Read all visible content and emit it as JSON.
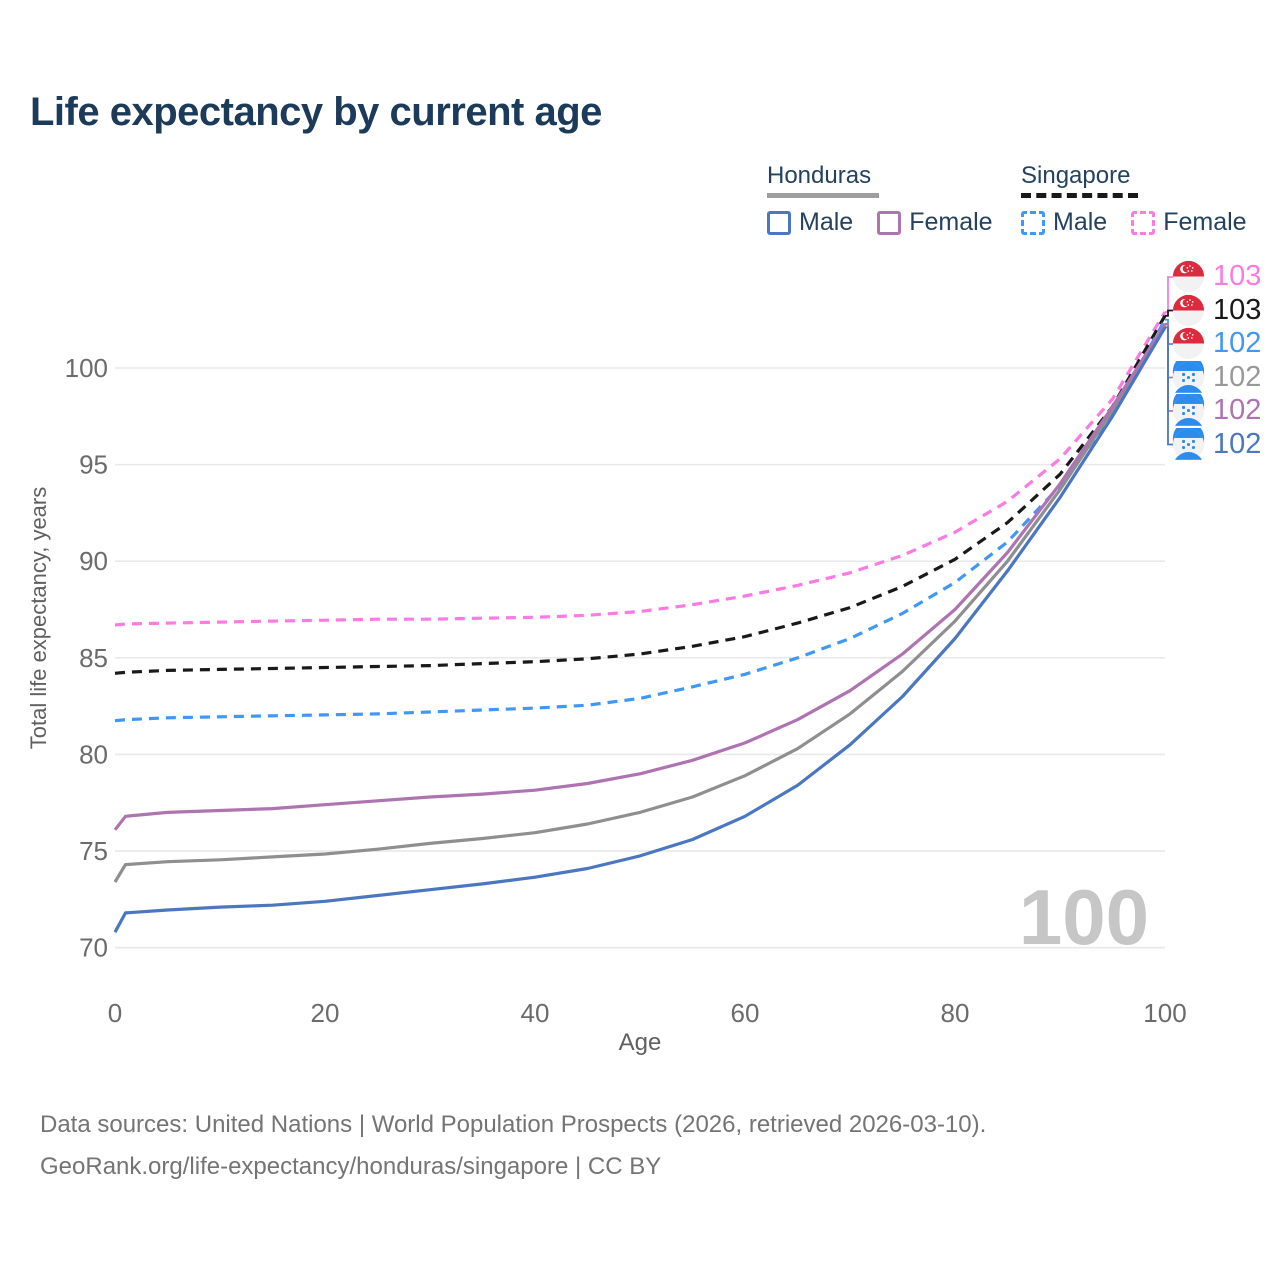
{
  "header": {
    "title": "Life expectancy by current age"
  },
  "legend": {
    "groups": [
      {
        "name": "Honduras",
        "line_style": "solid",
        "underline_color": "#9e9e9e",
        "items": [
          {
            "label": "Male",
            "color": "#4a77c0",
            "dashed": false
          },
          {
            "label": "Female",
            "color": "#ae74b2",
            "dashed": false
          }
        ]
      },
      {
        "name": "Singapore",
        "line_style": "dashed",
        "underline_color": "#191919",
        "items": [
          {
            "label": "Male",
            "color": "#3f97f6",
            "dashed": true
          },
          {
            "label": "Female",
            "color": "#fb7ae3",
            "dashed": true
          }
        ]
      }
    ]
  },
  "chart_data": {
    "type": "line",
    "title": "Life expectancy by current age",
    "xlabel": "Age",
    "ylabel": "Total life expectancy, years",
    "xlim": [
      0,
      100
    ],
    "ylim": [
      70,
      103.5
    ],
    "xticks": [
      0,
      20,
      40,
      60,
      80,
      100
    ],
    "yticks": [
      70,
      75,
      80,
      85,
      90,
      95,
      100
    ],
    "grid": true,
    "legend_position": "top-right",
    "watermark": "100",
    "x": [
      0,
      1,
      5,
      10,
      15,
      20,
      25,
      30,
      35,
      40,
      45,
      50,
      55,
      60,
      65,
      70,
      75,
      80,
      85,
      90,
      95,
      100
    ],
    "series": [
      {
        "name": "Singapore Female",
        "country": "Singapore",
        "sex": "Female",
        "color": "#fb7ae3",
        "dashed": true,
        "end_label": "103",
        "values": [
          86.7,
          86.75,
          86.8,
          86.85,
          86.9,
          86.95,
          87.0,
          87.0,
          87.05,
          87.1,
          87.2,
          87.4,
          87.75,
          88.2,
          88.75,
          89.4,
          90.3,
          91.5,
          93.1,
          95.3,
          98.4,
          102.9
        ]
      },
      {
        "name": "Singapore Total",
        "country": "Singapore",
        "sex": "Both",
        "color": "#191919",
        "dashed": true,
        "end_label": "103",
        "values": [
          84.2,
          84.25,
          84.35,
          84.4,
          84.45,
          84.5,
          84.55,
          84.6,
          84.7,
          84.8,
          84.95,
          85.2,
          85.6,
          86.1,
          86.8,
          87.6,
          88.7,
          90.1,
          92.0,
          94.5,
          98.0,
          102.7
        ]
      },
      {
        "name": "Singapore Male",
        "country": "Singapore",
        "sex": "Male",
        "color": "#3f97f6",
        "dashed": true,
        "end_label": "102",
        "values": [
          81.75,
          81.8,
          81.9,
          81.95,
          82.0,
          82.05,
          82.1,
          82.2,
          82.3,
          82.4,
          82.55,
          82.9,
          83.5,
          84.15,
          85.0,
          86.0,
          87.3,
          88.9,
          91.0,
          93.9,
          97.6,
          102.5
        ]
      },
      {
        "name": "Honduras Total",
        "country": "Honduras",
        "sex": "Both",
        "color": "#8f8f8f",
        "dashed": false,
        "end_label": "102",
        "values": [
          73.4,
          74.3,
          74.45,
          74.55,
          74.7,
          74.85,
          75.1,
          75.4,
          75.65,
          75.95,
          76.4,
          77.0,
          77.8,
          78.9,
          80.3,
          82.1,
          84.3,
          86.9,
          90.0,
          93.7,
          97.8,
          102.3
        ]
      },
      {
        "name": "Honduras Female",
        "country": "Honduras",
        "sex": "Female",
        "color": "#ae74b2",
        "dashed": false,
        "end_label": "102",
        "values": [
          76.1,
          76.8,
          77.0,
          77.1,
          77.2,
          77.4,
          77.6,
          77.8,
          77.95,
          78.15,
          78.5,
          79.0,
          79.7,
          80.6,
          81.8,
          83.3,
          85.2,
          87.5,
          90.45,
          94.0,
          98.0,
          102.25
        ]
      },
      {
        "name": "Honduras Male",
        "country": "Honduras",
        "sex": "Male",
        "color": "#4a77c0",
        "dashed": false,
        "end_label": "102",
        "values": [
          70.8,
          71.8,
          71.95,
          72.1,
          72.2,
          72.4,
          72.7,
          73.0,
          73.3,
          73.65,
          74.1,
          74.75,
          75.6,
          76.8,
          78.4,
          80.5,
          83.0,
          86.0,
          89.5,
          93.3,
          97.5,
          102.1
        ]
      }
    ]
  },
  "right_labels": [
    {
      "flag": "singapore",
      "value": "103",
      "color": "#fb7ae3"
    },
    {
      "flag": "singapore",
      "value": "103",
      "color": "#191919"
    },
    {
      "flag": "singapore",
      "value": "102",
      "color": "#3f97f6"
    },
    {
      "flag": "honduras",
      "value": "102",
      "color": "#999999"
    },
    {
      "flag": "honduras",
      "value": "102",
      "color": "#ae74b2"
    },
    {
      "flag": "honduras",
      "value": "102",
      "color": "#4a77c0"
    }
  ],
  "colors": {
    "title_text": "#1c3a59",
    "legend_text": "#24425f",
    "tick_text": "#6b6b6b",
    "axis_title_text": "#606060",
    "gridline": "#e9e9e9",
    "watermark": "#c6c6c6",
    "footer_text": "#747474",
    "singapore_flag_red": "#dc2b3e",
    "honduras_flag_blue": "#2b8ceb"
  },
  "footer": {
    "line1": "Data sources: United Nations | World Population Prospects (2026, retrieved 2026-03-10).",
    "line2": "GeoRank.org/life-expectancy/honduras/singapore | CC BY"
  }
}
